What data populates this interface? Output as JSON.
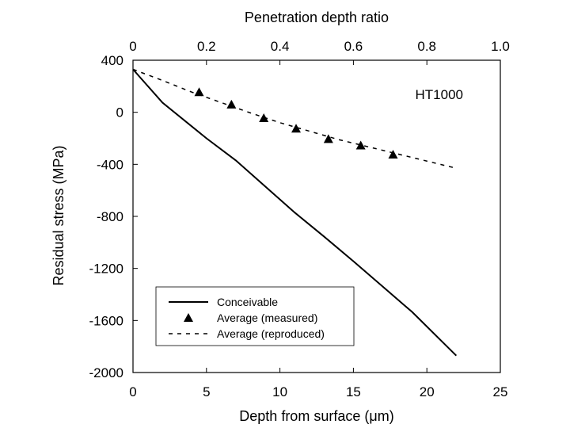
{
  "chart_data": {
    "type": "line",
    "title": "",
    "annotation": "HT1000",
    "xlabel": "Depth from surface (μm)",
    "ylabel": "Residual stress (MPa)",
    "x2label": "Penetration depth ratio",
    "xlim": [
      0,
      25
    ],
    "ylim": [
      -2000,
      400
    ],
    "x2lim": [
      0,
      1.0
    ],
    "xticks": [
      0,
      5,
      10,
      15,
      20,
      25
    ],
    "xtick_labels": [
      "0",
      "5",
      "10",
      "15",
      "20",
      "25"
    ],
    "yticks": [
      400,
      0,
      -400,
      -800,
      -1200,
      -1600,
      -2000
    ],
    "ytick_labels": [
      "400",
      "0",
      "-400",
      "-800",
      "-1200",
      "-1600",
      "-2000"
    ],
    "x2ticks": [
      0,
      0.2,
      0.4,
      0.6,
      0.8,
      1.0
    ],
    "x2tick_labels": [
      "0",
      "0.2",
      "0.4",
      "0.6",
      "0.8",
      "1.0"
    ],
    "grid": false,
    "legend_position": "bottom-left",
    "series": [
      {
        "name": "Conceivable",
        "style": "solid-line",
        "x": [
          0,
          2,
          5,
          7,
          9,
          11,
          13,
          15,
          17,
          19,
          22
        ],
        "y": [
          330,
          75,
          -200,
          -370,
          -570,
          -770,
          -955,
          -1145,
          -1340,
          -1535,
          -1870
        ]
      },
      {
        "name": "Average (measured)",
        "style": "triangle-markers",
        "x": [
          4.5,
          6.7,
          8.9,
          11.1,
          13.3,
          15.5,
          17.7
        ],
        "y": [
          155,
          60,
          -45,
          -125,
          -205,
          -255,
          -325
        ]
      },
      {
        "name": "Average (reproduced)",
        "style": "dashed-line",
        "x": [
          0,
          2,
          4,
          6,
          8,
          10,
          12,
          14,
          16,
          18,
          20,
          22
        ],
        "y": [
          330,
          245,
          155,
          75,
          -5,
          -80,
          -145,
          -210,
          -265,
          -320,
          -375,
          -430
        ]
      }
    ]
  }
}
